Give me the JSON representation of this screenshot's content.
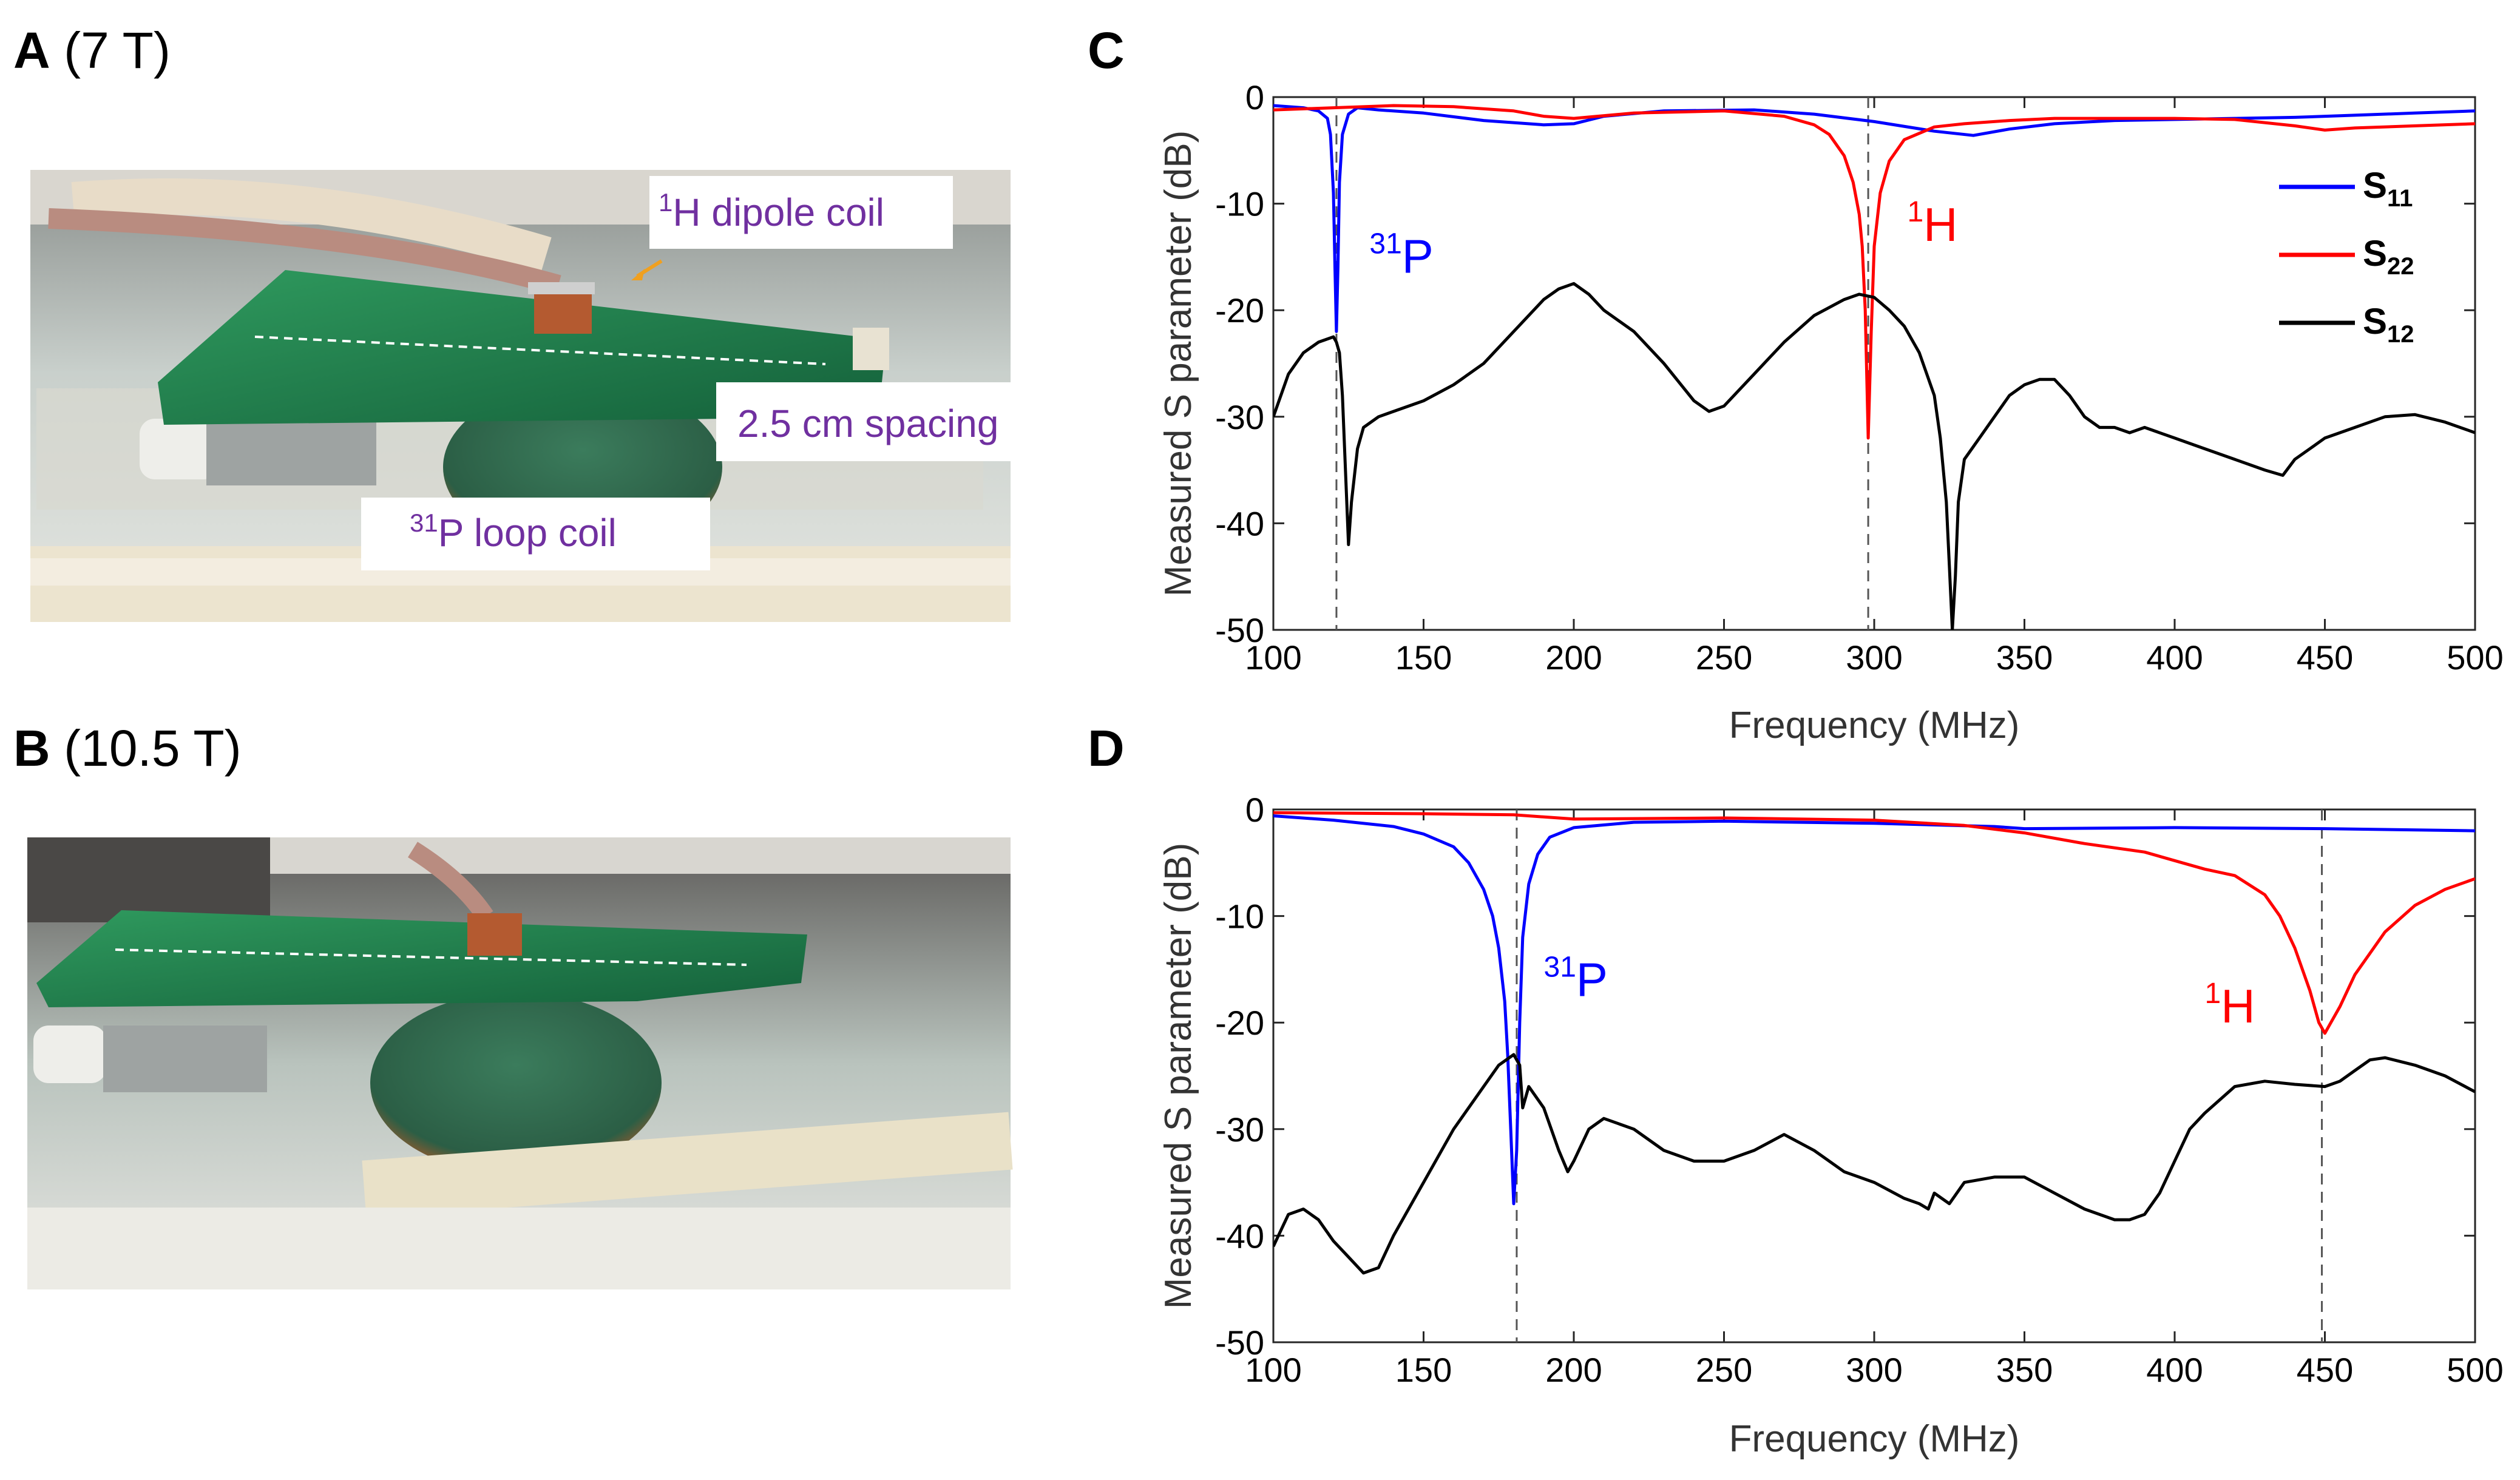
{
  "panels": {
    "A": {
      "letter": "A",
      "field": "(7 T)"
    },
    "B": {
      "letter": "B",
      "field": "(10.5 T)"
    },
    "C": {
      "letter": "C"
    },
    "D": {
      "letter": "D"
    }
  },
  "photo_labels": {
    "dipole": {
      "sup": "1",
      "text": "H dipole coil"
    },
    "spacing": {
      "text": "2.5 cm spacing"
    },
    "loop": {
      "sup": "31",
      "text": "P loop coil"
    }
  },
  "colors": {
    "s11": "#0000ff",
    "s22": "#ff0000",
    "s12": "#000000",
    "photo_label": "#7030a0",
    "pcb": "#1f7a4a",
    "arrow": "#f0a020"
  },
  "chart_data": [
    {
      "panel": "C",
      "type": "line",
      "title": "",
      "xlabel": "Frequency (MHz)",
      "ylabel": "Measured S parameter (dB)",
      "xlim": [
        100,
        500
      ],
      "ylim": [
        -50,
        0
      ],
      "xticks": [
        100,
        150,
        200,
        250,
        300,
        350,
        400,
        450,
        500
      ],
      "yticks": [
        0,
        -10,
        -20,
        -30,
        -40,
        -50
      ],
      "ytick_labels": [
        "0",
        "-10",
        "-20",
        "-30",
        "-40",
        "-50"
      ],
      "grid": false,
      "legend_position": "top-right",
      "vlines": [
        121,
        298
      ],
      "annotations": [
        {
          "sup": "31",
          "text": "P",
          "x": 132,
          "y": -16.5,
          "series": "S11"
        },
        {
          "sup": "1",
          "text": "H",
          "x": 311,
          "y": -13.5,
          "series": "S22"
        }
      ],
      "series": [
        {
          "name": "S11",
          "label_main": "S",
          "label_sub": "11",
          "color": "#0000ff",
          "x": [
            100,
            110,
            115,
            118,
            119,
            120,
            120.5,
            121,
            121.5,
            122,
            123,
            125,
            128,
            135,
            150,
            170,
            190,
            200,
            210,
            230,
            260,
            280,
            300,
            320,
            333,
            345,
            360,
            380,
            400,
            420,
            440,
            460,
            480,
            500
          ],
          "y": [
            -0.8,
            -1.0,
            -1.3,
            -2.0,
            -3.5,
            -9,
            -16,
            -22,
            -16,
            -8,
            -3.5,
            -1.6,
            -1.0,
            -1.2,
            -1.5,
            -2.2,
            -2.6,
            -2.5,
            -1.8,
            -1.3,
            -1.2,
            -1.6,
            -2.3,
            -3.2,
            -3.6,
            -3.0,
            -2.5,
            -2.2,
            -2.1,
            -2.0,
            -1.9,
            -1.7,
            -1.5,
            -1.3
          ]
        },
        {
          "name": "S22",
          "label_main": "S",
          "label_sub": "22",
          "color": "#ff0000",
          "x": [
            100,
            120,
            140,
            160,
            180,
            190,
            200,
            220,
            250,
            270,
            280,
            285,
            290,
            293,
            295,
            296,
            297,
            298,
            299,
            300,
            302,
            305,
            310,
            320,
            330,
            345,
            360,
            400,
            420,
            440,
            450,
            460,
            480,
            500
          ],
          "y": [
            -1.2,
            -1.0,
            -0.8,
            -0.9,
            -1.3,
            -1.8,
            -2.0,
            -1.5,
            -1.3,
            -1.8,
            -2.6,
            -3.5,
            -5.5,
            -8,
            -11,
            -14,
            -20,
            -32,
            -22,
            -14,
            -9,
            -6,
            -4,
            -2.8,
            -2.5,
            -2.2,
            -2.0,
            -2.0,
            -2.1,
            -2.7,
            -3.1,
            -2.9,
            -2.7,
            -2.5
          ]
        },
        {
          "name": "S12",
          "label_main": "S",
          "label_sub": "12",
          "color": "#000000",
          "x": [
            100,
            105,
            110,
            115,
            120,
            121,
            122,
            123,
            124,
            125,
            126,
            128,
            130,
            135,
            140,
            150,
            160,
            170,
            180,
            190,
            195,
            200,
            205,
            210,
            220,
            230,
            240,
            245,
            250,
            260,
            270,
            280,
            290,
            295,
            300,
            305,
            310,
            315,
            320,
            322,
            324,
            325,
            326,
            327,
            328,
            330,
            335,
            340,
            345,
            350,
            355,
            360,
            365,
            370,
            375,
            380,
            385,
            390,
            400,
            410,
            420,
            430,
            436,
            440,
            445,
            450,
            455,
            460,
            470,
            480,
            490,
            500
          ],
          "y": [
            -30,
            -26,
            -24,
            -23,
            -22.5,
            -23,
            -24,
            -28,
            -35,
            -42,
            -38,
            -33,
            -31,
            -30,
            -29.5,
            -28.5,
            -27,
            -25,
            -22,
            -19,
            -18,
            -17.5,
            -18.5,
            -20,
            -22,
            -25,
            -28.5,
            -29.5,
            -29,
            -26,
            -23,
            -20.5,
            -19,
            -18.5,
            -18.8,
            -20,
            -21.5,
            -24,
            -28,
            -32,
            -38,
            -44,
            -50,
            -45,
            -38,
            -34,
            -32,
            -30,
            -28,
            -27,
            -26.5,
            -26.5,
            -28,
            -30,
            -31,
            -31,
            -31.5,
            -31,
            -32,
            -33,
            -34,
            -35,
            -35.5,
            -34,
            -33,
            -32,
            -31.5,
            -31,
            -30,
            -29.8,
            -30.5,
            -31.5
          ]
        }
      ]
    },
    {
      "panel": "D",
      "type": "line",
      "title": "",
      "xlabel": "Frequency (MHz)",
      "ylabel": "Measured S parameter (dB)",
      "xlim": [
        100,
        500
      ],
      "ylim": [
        -50,
        0
      ],
      "xticks": [
        100,
        150,
        200,
        250,
        300,
        350,
        400,
        450,
        500
      ],
      "yticks": [
        0,
        -10,
        -20,
        -30,
        -40,
        -50
      ],
      "ytick_labels": [
        "0",
        "-10",
        "-20",
        "-30",
        "-40",
        "-50"
      ],
      "grid": false,
      "vlines": [
        181,
        449
      ],
      "annotations": [
        {
          "sup": "31",
          "text": "P",
          "x": 190,
          "y": -17.5,
          "series": "S11"
        },
        {
          "sup": "1",
          "text": "H",
          "x": 410,
          "y": -20,
          "series": "S22"
        }
      ],
      "series": [
        {
          "name": "S11",
          "color": "#0000ff",
          "x": [
            100,
            120,
            140,
            150,
            160,
            165,
            170,
            173,
            175,
            177,
            178,
            179,
            180,
            181,
            182,
            183,
            185,
            188,
            192,
            200,
            220,
            250,
            300,
            340,
            350,
            400,
            450,
            500
          ],
          "y": [
            -0.6,
            -1.0,
            -1.6,
            -2.3,
            -3.5,
            -5,
            -7.5,
            -10,
            -13,
            -18,
            -23,
            -30,
            -37,
            -32,
            -20,
            -12,
            -7,
            -4.2,
            -2.6,
            -1.7,
            -1.2,
            -1.1,
            -1.3,
            -1.6,
            -1.8,
            -1.7,
            -1.8,
            -2.0
          ]
        },
        {
          "name": "S22",
          "color": "#ff0000",
          "x": [
            100,
            150,
            180,
            200,
            250,
            300,
            330,
            350,
            370,
            390,
            400,
            410,
            420,
            430,
            435,
            440,
            445,
            448,
            450,
            452,
            455,
            460,
            470,
            480,
            490,
            500
          ],
          "y": [
            -0.3,
            -0.4,
            -0.5,
            -0.9,
            -0.8,
            -1.0,
            -1.5,
            -2.2,
            -3.2,
            -4.0,
            -4.8,
            -5.6,
            -6.2,
            -8,
            -10,
            -13,
            -17,
            -20,
            -21,
            -20,
            -18.5,
            -15.5,
            -11.5,
            -9,
            -7.5,
            -6.5
          ]
        },
        {
          "name": "S12",
          "color": "#000000",
          "x": [
            100,
            105,
            110,
            115,
            120,
            125,
            130,
            135,
            140,
            150,
            160,
            170,
            175,
            180,
            182,
            183,
            185,
            190,
            195,
            198,
            200,
            205,
            210,
            220,
            230,
            240,
            250,
            260,
            270,
            280,
            290,
            300,
            310,
            315,
            318,
            320,
            325,
            330,
            340,
            350,
            360,
            370,
            380,
            385,
            390,
            395,
            400,
            405,
            410,
            420,
            430,
            440,
            450,
            455,
            460,
            465,
            470,
            480,
            490,
            500
          ],
          "y": [
            -41,
            -38,
            -37.5,
            -38.5,
            -40.5,
            -42,
            -43.5,
            -43,
            -40,
            -35,
            -30,
            -26,
            -24,
            -23,
            -24,
            -28,
            -26,
            -28,
            -32,
            -34,
            -33,
            -30,
            -29,
            -30,
            -32,
            -33,
            -33,
            -32,
            -30.5,
            -32,
            -34,
            -35,
            -36.5,
            -37,
            -37.5,
            -36,
            -37,
            -35,
            -34.5,
            -34.5,
            -36,
            -37.5,
            -38.5,
            -38.5,
            -38,
            -36,
            -33,
            -30,
            -28.5,
            -26,
            -25.5,
            -25.8,
            -26,
            -25.5,
            -24.5,
            -23.5,
            -23.3,
            -24,
            -25,
            -26.5
          ]
        }
      ]
    }
  ]
}
